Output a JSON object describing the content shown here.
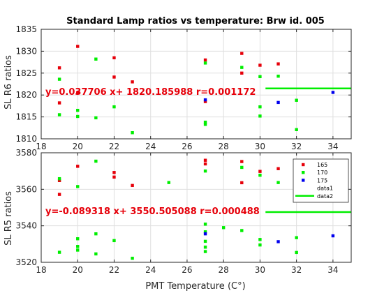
{
  "chart_data": [
    {
      "type": "scatter",
      "title": "Standard Lamp ratios vs temperature: Brw id. 005",
      "ylabel": "SL R6 ratios",
      "xlabel": "",
      "xlim": [
        18,
        35
      ],
      "ylim": [
        1810,
        1835
      ],
      "xticks": [
        "18",
        "20",
        "22",
        "24",
        "26",
        "28",
        "30",
        "32",
        "34"
      ],
      "yticks": [
        "1810",
        "1815",
        "1820",
        "1825",
        "1830",
        "1835"
      ],
      "fit_text": "y=0.037706 x+ 1820.185988 r=0.001172",
      "fit_line": {
        "x": [
          30.3,
          35
        ],
        "y": 1821.5
      },
      "series": [
        {
          "name": "165",
          "color": "#e6000a",
          "points": [
            [
              19,
              1826.2
            ],
            [
              19,
              1818.2
            ],
            [
              20,
              1831.1
            ],
            [
              20,
              1820.5
            ],
            [
              22,
              1828.5
            ],
            [
              22,
              1824.1
            ],
            [
              23,
              1823
            ],
            [
              27,
              1828
            ],
            [
              27,
              1818.5
            ],
            [
              29,
              1829.5
            ],
            [
              29,
              1825
            ],
            [
              30,
              1826.8
            ],
            [
              31,
              1827.1
            ]
          ]
        },
        {
          "name": "170",
          "color": "#00ee00",
          "points": [
            [
              19,
              1823.6
            ],
            [
              19,
              1815.5
            ],
            [
              20,
              1816.5
            ],
            [
              20,
              1815.1
            ],
            [
              21,
              1828.2
            ],
            [
              21,
              1814.8
            ],
            [
              22,
              1817.3
            ],
            [
              23,
              1811.4
            ],
            [
              27,
              1827.3
            ],
            [
              27,
              1813.8
            ],
            [
              27,
              1813.3
            ],
            [
              29,
              1826.3
            ],
            [
              30,
              1824.2
            ],
            [
              30,
              1817.3
            ],
            [
              30,
              1815.2
            ],
            [
              31,
              1824.3
            ],
            [
              32,
              1818.8
            ],
            [
              32,
              1812.1
            ]
          ]
        },
        {
          "name": "175",
          "color": "#0000ee",
          "points": [
            [
              27,
              1818.9
            ],
            [
              31,
              1818.3
            ],
            [
              34,
              1820.6
            ]
          ]
        }
      ]
    },
    {
      "type": "scatter",
      "title": "",
      "ylabel": "SL R5 ratios",
      "xlabel": "PMT Temperature (C°)",
      "xlim": [
        18,
        35
      ],
      "ylim": [
        3520,
        3580
      ],
      "xticks": [
        "18",
        "20",
        "22",
        "24",
        "26",
        "28",
        "30",
        "32",
        "34"
      ],
      "yticks": [
        "3520",
        "3540",
        "3560",
        "3580"
      ],
      "fit_text": "y=-0.089318 x+ 3550.505088 r=0.000488",
      "fit_line": {
        "x": [
          30.3,
          35
        ],
        "y": 3547.5
      },
      "series": [
        {
          "name": "165",
          "color": "#e6000a",
          "points": [
            [
              19,
              3564.8
            ],
            [
              19,
              3557.2
            ],
            [
              20,
              3572.6
            ],
            [
              22,
              3569.2
            ],
            [
              22,
              3566.7
            ],
            [
              23,
              3562.1
            ],
            [
              27,
              3575.9
            ],
            [
              27,
              3573.9
            ],
            [
              29,
              3575.2
            ],
            [
              29,
              3563.6
            ],
            [
              30,
              3569.8
            ],
            [
              31,
              3571.3
            ]
          ]
        },
        {
          "name": "170",
          "color": "#00ee00",
          "points": [
            [
              19,
              3565.8
            ],
            [
              19,
              3525.5
            ],
            [
              20,
              3561.5
            ],
            [
              20,
              3532.9
            ],
            [
              20,
              3528.7
            ],
            [
              20,
              3526.7
            ],
            [
              21,
              3575.4
            ],
            [
              21,
              3535.6
            ],
            [
              21,
              3524.6
            ],
            [
              22,
              3531.9
            ],
            [
              23,
              3522.2
            ],
            [
              25,
              3563.7
            ],
            [
              27,
              3570.0
            ],
            [
              27,
              3540.9
            ],
            [
              27,
              3536.7
            ],
            [
              27,
              3531.5
            ],
            [
              27,
              3528.3
            ],
            [
              27,
              3525.9
            ],
            [
              28,
              3539.0
            ],
            [
              29,
              3572.0
            ],
            [
              29,
              3537.4
            ],
            [
              30,
              3567.7
            ],
            [
              30,
              3532.5
            ],
            [
              30,
              3529.5
            ],
            [
              31,
              3563.7
            ],
            [
              32,
              3533.5
            ],
            [
              32,
              3525.4
            ]
          ]
        },
        {
          "name": "175",
          "color": "#0000ee",
          "points": [
            [
              27,
              3535.6
            ],
            [
              31,
              3531.3
            ],
            [
              34,
              3534.5
            ]
          ]
        }
      ],
      "legend": {
        "placement": "top-right",
        "entries": [
          {
            "label": "165",
            "kind": "marker",
            "color": "#e6000a"
          },
          {
            "label": "170",
            "kind": "marker",
            "color": "#00ee00"
          },
          {
            "label": "175",
            "kind": "marker",
            "color": "#0000ee"
          },
          {
            "label": "data1",
            "kind": "none",
            "color": ""
          },
          {
            "label": "data2",
            "kind": "line",
            "color": "#00ee00"
          }
        ]
      }
    }
  ]
}
